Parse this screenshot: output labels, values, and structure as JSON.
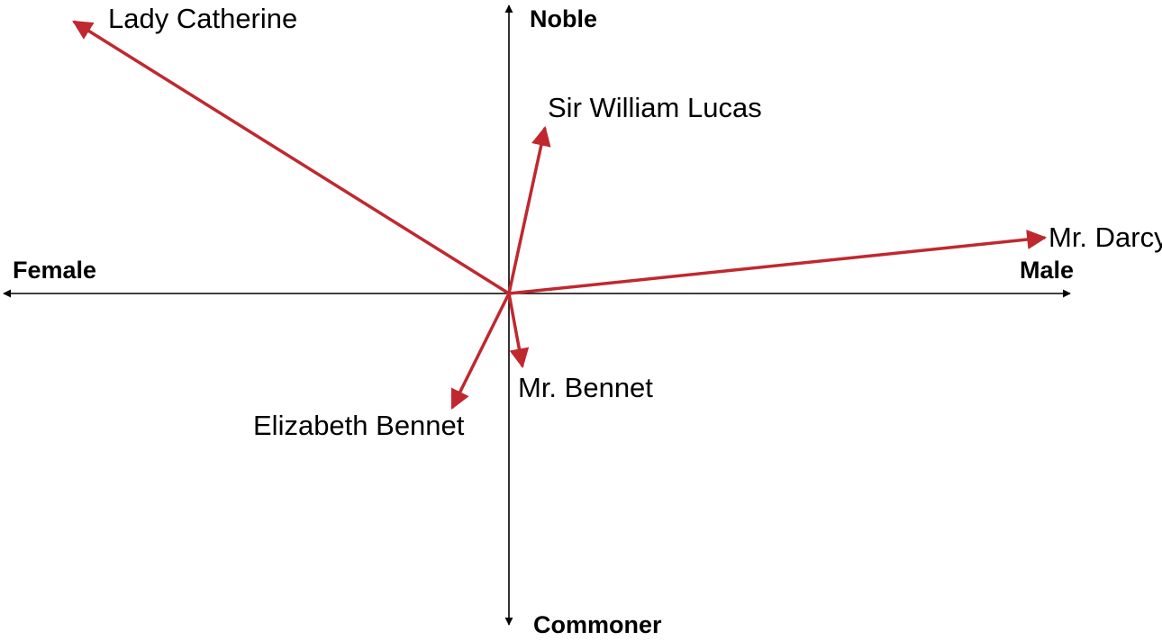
{
  "axes": {
    "left_label": "Female",
    "right_label": "Male",
    "top_label": "Noble",
    "bottom_label": "Commoner"
  },
  "vectors": [
    {
      "label": "Lady Catherine"
    },
    {
      "label": "Sir William Lucas"
    },
    {
      "label": "Mr. Darcy"
    },
    {
      "label": "Mr. Bennet"
    },
    {
      "label": "Elizabeth Bennet"
    }
  ],
  "colors": {
    "axis": "#000000",
    "vector": "#c0282f"
  }
}
